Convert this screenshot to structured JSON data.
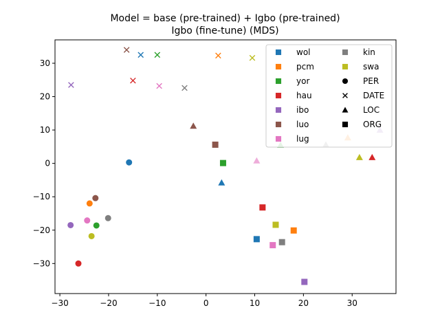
{
  "chart_data": {
    "type": "scatter",
    "title": "Model = base (pre-trained) + Igbo (pre-trained)",
    "subtitle": "Igbo (fine-tune) (MDS)",
    "xlim": [
      -31,
      39
    ],
    "ylim": [
      -39,
      37
    ],
    "xticks": [
      -30,
      -20,
      -10,
      0,
      10,
      20,
      30
    ],
    "yticks": [
      -30,
      -20,
      -10,
      0,
      10,
      20,
      30
    ],
    "grid": false,
    "legend_position": "top-right",
    "languages": [
      {
        "name": "wol",
        "color": "#1f77b4"
      },
      {
        "name": "pcm",
        "color": "#ff7f0e"
      },
      {
        "name": "yor",
        "color": "#2ca02c"
      },
      {
        "name": "hau",
        "color": "#d62728"
      },
      {
        "name": "ibo",
        "color": "#9467bd"
      },
      {
        "name": "luo",
        "color": "#8c564b"
      },
      {
        "name": "lug",
        "color": "#e377c2"
      },
      {
        "name": "kin",
        "color": "#7f7f7f"
      },
      {
        "name": "swa",
        "color": "#bcbd22"
      }
    ],
    "entity_types": [
      {
        "name": "PER",
        "marker": "circle"
      },
      {
        "name": "DATE",
        "marker": "x"
      },
      {
        "name": "LOC",
        "marker": "triangle"
      },
      {
        "name": "ORG",
        "marker": "square"
      }
    ],
    "points": [
      {
        "lang": "wol",
        "type": "PER",
        "x": -15.8,
        "y": 0.3
      },
      {
        "lang": "wol",
        "type": "DATE",
        "x": -13.4,
        "y": 32.5
      },
      {
        "lang": "wol",
        "type": "LOC",
        "x": 3.2,
        "y": -5.8
      },
      {
        "lang": "wol",
        "type": "ORG",
        "x": 10.4,
        "y": -22.7
      },
      {
        "lang": "pcm",
        "type": "PER",
        "x": -23.9,
        "y": -12.0
      },
      {
        "lang": "pcm",
        "type": "DATE",
        "x": 2.5,
        "y": 32.3
      },
      {
        "lang": "pcm",
        "type": "LOC",
        "x": 29.1,
        "y": 7.7,
        "alpha": 0.6
      },
      {
        "lang": "pcm",
        "type": "ORG",
        "x": 18.0,
        "y": -20.1
      },
      {
        "lang": "yor",
        "type": "PER",
        "x": -22.5,
        "y": -18.6
      },
      {
        "lang": "yor",
        "type": "DATE",
        "x": -10.0,
        "y": 32.5
      },
      {
        "lang": "yor",
        "type": "LOC",
        "x": 15.3,
        "y": 5.5,
        "alpha": 0.6
      },
      {
        "lang": "yor",
        "type": "ORG",
        "x": 3.5,
        "y": 0.1
      },
      {
        "lang": "hau",
        "type": "PER",
        "x": -26.2,
        "y": -30.0
      },
      {
        "lang": "hau",
        "type": "DATE",
        "x": -15.0,
        "y": 24.8
      },
      {
        "lang": "hau",
        "type": "LOC",
        "x": 34.1,
        "y": 1.8
      },
      {
        "lang": "hau",
        "type": "ORG",
        "x": 11.6,
        "y": -13.2
      },
      {
        "lang": "ibo",
        "type": "PER",
        "x": -27.8,
        "y": -18.5
      },
      {
        "lang": "ibo",
        "type": "DATE",
        "x": -27.7,
        "y": 23.5
      },
      {
        "lang": "ibo",
        "type": "LOC",
        "x": 35.7,
        "y": 10.0,
        "alpha": 0.6
      },
      {
        "lang": "ibo",
        "type": "ORG",
        "x": 20.2,
        "y": -35.5
      },
      {
        "lang": "luo",
        "type": "PER",
        "x": -22.7,
        "y": -10.4
      },
      {
        "lang": "luo",
        "type": "DATE",
        "x": -16.3,
        "y": 34.0
      },
      {
        "lang": "luo",
        "type": "LOC",
        "x": -2.6,
        "y": 11.2
      },
      {
        "lang": "luo",
        "type": "ORG",
        "x": 1.9,
        "y": 5.6
      },
      {
        "lang": "lug",
        "type": "PER",
        "x": -24.4,
        "y": -17.1
      },
      {
        "lang": "lug",
        "type": "DATE",
        "x": -9.6,
        "y": 23.2
      },
      {
        "lang": "lug",
        "type": "LOC",
        "x": 10.4,
        "y": 0.8,
        "alpha": 0.6
      },
      {
        "lang": "lug",
        "type": "ORG",
        "x": 13.7,
        "y": -24.5
      },
      {
        "lang": "kin",
        "type": "PER",
        "x": -20.1,
        "y": -16.4
      },
      {
        "lang": "kin",
        "type": "DATE",
        "x": -4.4,
        "y": 22.6
      },
      {
        "lang": "kin",
        "type": "LOC",
        "x": 24.6,
        "y": 5.6,
        "alpha": 0.6
      },
      {
        "lang": "kin",
        "type": "ORG",
        "x": 15.6,
        "y": -23.6
      },
      {
        "lang": "swa",
        "type": "PER",
        "x": -23.5,
        "y": -21.8
      },
      {
        "lang": "swa",
        "type": "DATE",
        "x": 9.5,
        "y": 31.6
      },
      {
        "lang": "swa",
        "type": "LOC",
        "x": 31.5,
        "y": 1.8
      },
      {
        "lang": "swa",
        "type": "ORG",
        "x": 14.3,
        "y": -18.4
      }
    ]
  }
}
